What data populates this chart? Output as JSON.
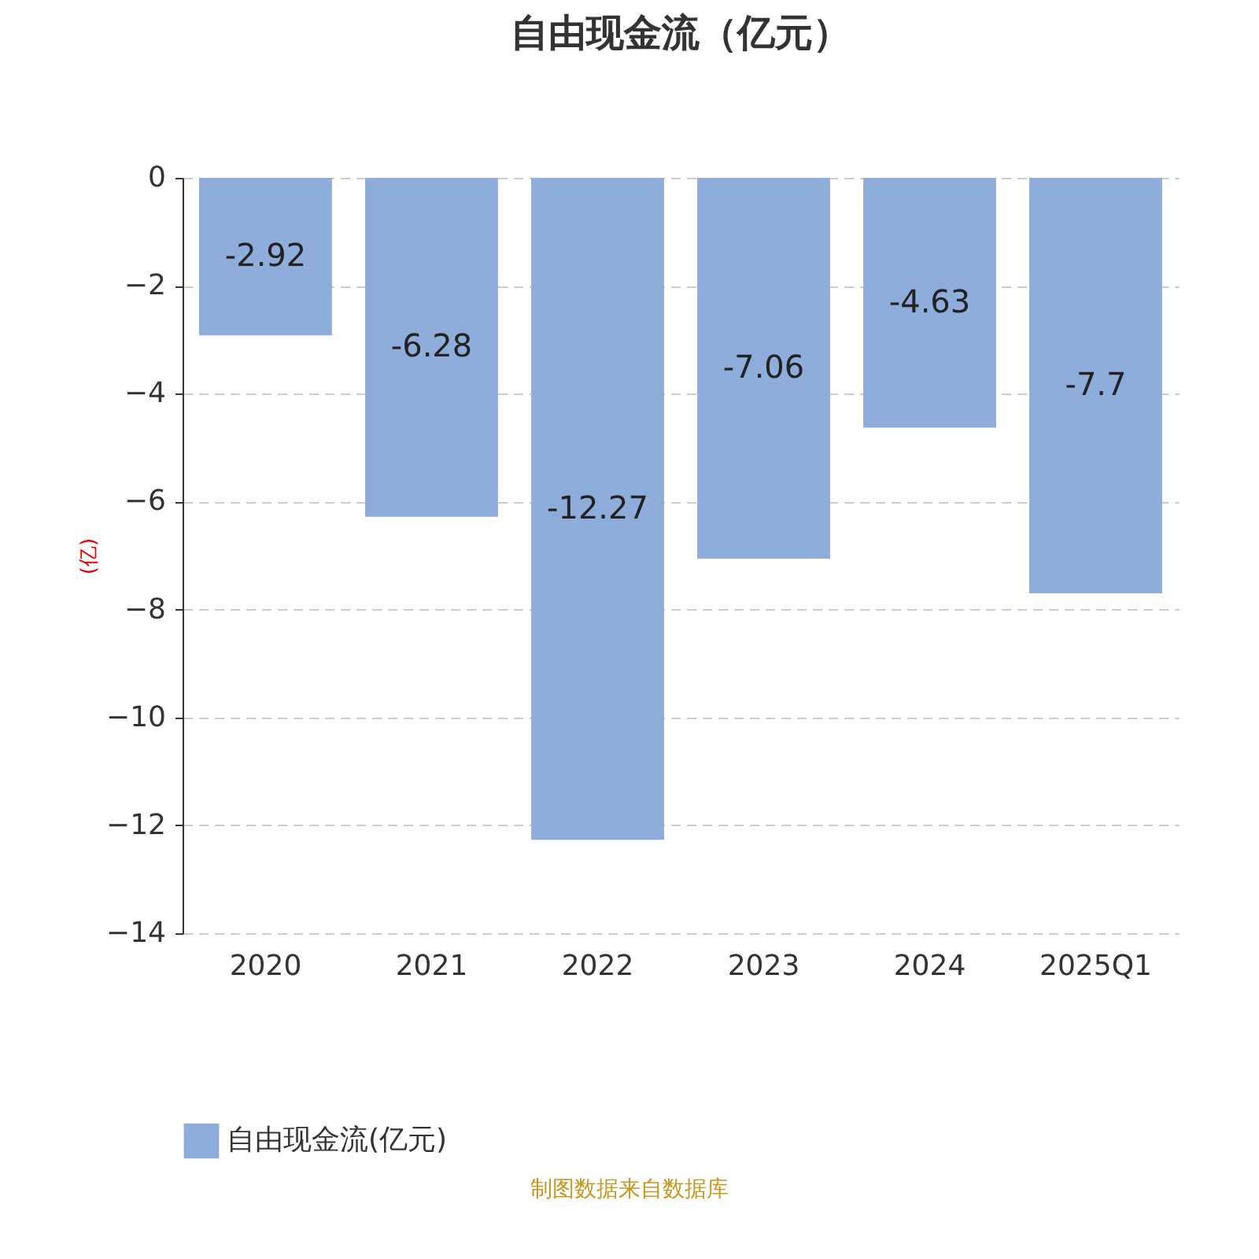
{
  "chart_data": {
    "type": "bar",
    "title": "自由现金流（亿元）",
    "ylabel": "(亿)",
    "categories": [
      "2020",
      "2021",
      "2022",
      "2023",
      "2024",
      "2025Q1"
    ],
    "series": [
      {
        "name": "自由现金流(亿元)",
        "color": "#8eaddb",
        "values": [
          -2.92,
          -6.28,
          -12.27,
          -7.06,
          -4.63,
          -7.7
        ]
      }
    ],
    "ylim": [
      -14,
      0
    ],
    "yticks": [
      0,
      -2,
      -4,
      -6,
      -8,
      -10,
      -12,
      -14
    ],
    "grid": "y",
    "legend": "bottom",
    "data_labels": true,
    "annotations": [
      "制图数据来自数据库"
    ]
  }
}
